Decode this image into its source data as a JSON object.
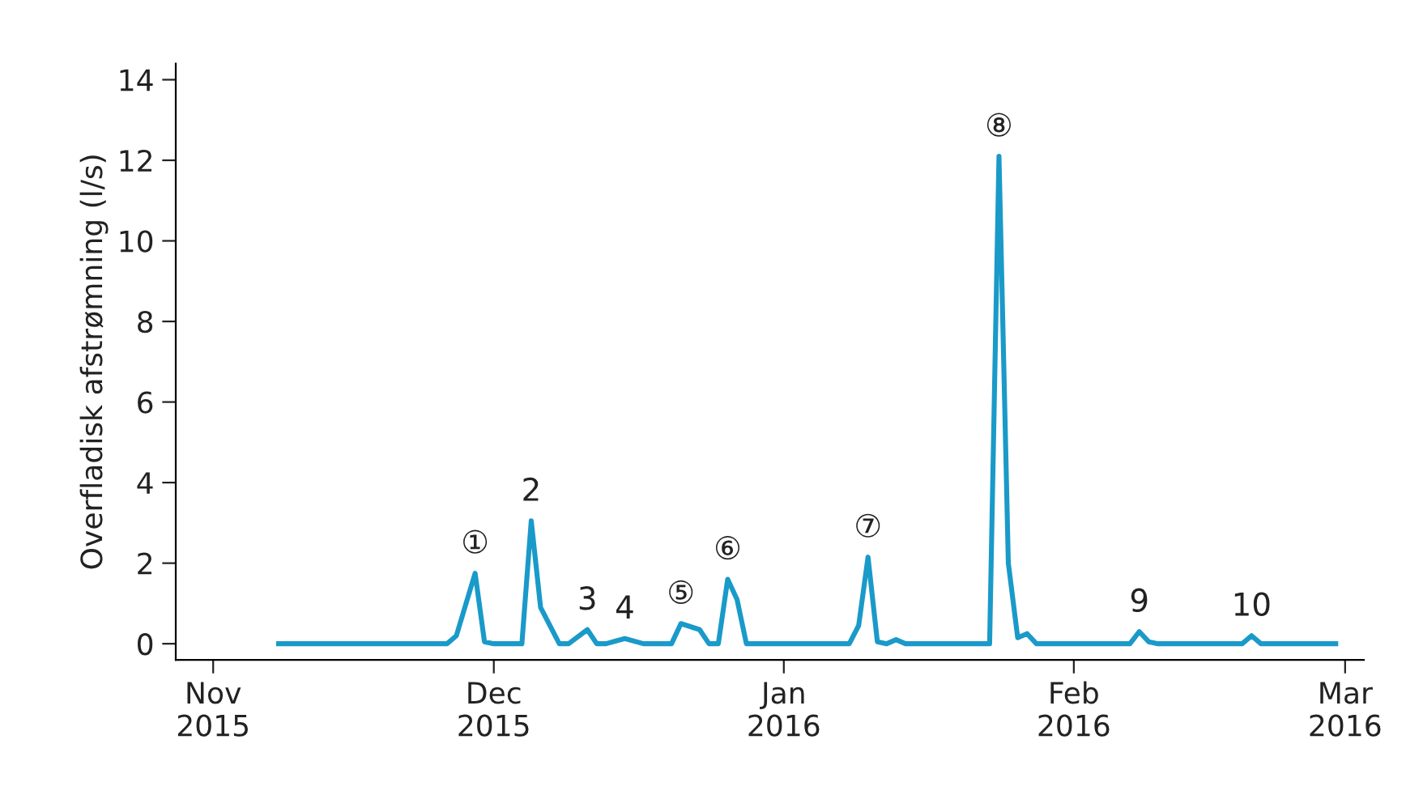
{
  "chart_data": {
    "type": "line",
    "ylabel": "Overfladisk afstrømning (l/s)",
    "x": [
      "2015-11-08",
      "2015-11-26",
      "2015-11-27",
      "2015-11-29",
      "2015-11-30",
      "2015-12-01",
      "2015-12-04",
      "2015-12-05",
      "2015-12-06",
      "2015-12-08",
      "2015-12-09",
      "2015-12-11",
      "2015-12-12",
      "2015-12-13",
      "2015-12-15",
      "2015-12-17",
      "2015-12-20",
      "2015-12-21",
      "2015-12-23",
      "2015-12-24",
      "2015-12-25",
      "2015-12-26",
      "2015-12-27",
      "2015-12-28",
      "2016-01-08",
      "2016-01-09",
      "2016-01-10",
      "2016-01-11",
      "2016-01-12",
      "2016-01-13",
      "2016-01-14",
      "2016-01-23",
      "2016-01-24",
      "2016-01-25",
      "2016-01-26",
      "2016-01-27",
      "2016-01-28",
      "2016-02-07",
      "2016-02-08",
      "2016-02-09",
      "2016-02-10",
      "2016-02-19",
      "2016-02-20",
      "2016-02-21",
      "2016-02-29"
    ],
    "series": [
      {
        "color": "#1a9ac9",
        "values": [
          0,
          0,
          0.2,
          1.75,
          0.05,
          0,
          0,
          3.05,
          0.9,
          0,
          0,
          0.35,
          0,
          0,
          0.13,
          0,
          0,
          0.5,
          0.35,
          0,
          0,
          1.6,
          1.1,
          0,
          0,
          0.45,
          2.15,
          0.05,
          0,
          0.1,
          0,
          0,
          12.1,
          2.0,
          0.15,
          0.25,
          0,
          0,
          0.3,
          0.05,
          0,
          0,
          0.2,
          0,
          0
        ]
      }
    ],
    "xlim": [
      "2015-10-28",
      "2016-03-03"
    ],
    "xticks": [
      {
        "value": "2015-11-01",
        "label": "Nov\n2015"
      },
      {
        "value": "2015-12-01",
        "label": "Dec\n2015"
      },
      {
        "value": "2016-01-01",
        "label": "Jan\n2016"
      },
      {
        "value": "2016-02-01",
        "label": "Feb\n2016"
      },
      {
        "value": "2016-03-01",
        "label": "Mar\n2016"
      }
    ],
    "ylim": [
      -0.4,
      14.4
    ],
    "yticks": [
      0,
      2,
      4,
      6,
      8,
      10,
      12,
      14
    ],
    "grid": false,
    "legend": false,
    "marker": "none",
    "line_style": "solid",
    "annotations": [
      {
        "text": "①",
        "x": "2015-11-29",
        "y": 1.75
      },
      {
        "text": "2",
        "x": "2015-12-05",
        "y": 3.05
      },
      {
        "text": "3",
        "x": "2015-12-11",
        "y": 0.35
      },
      {
        "text": "4",
        "x": "2015-12-15",
        "y": 0.13
      },
      {
        "text": "⑤",
        "x": "2015-12-21",
        "y": 0.5
      },
      {
        "text": "⑥",
        "x": "2015-12-26",
        "y": 1.6
      },
      {
        "text": "⑦",
        "x": "2016-01-10",
        "y": 2.15
      },
      {
        "text": "⑧",
        "x": "2016-01-24",
        "y": 12.1
      },
      {
        "text": "9",
        "x": "2016-02-08",
        "y": 0.3
      },
      {
        "text": "10",
        "x": "2016-02-20",
        "y": 0.2
      }
    ]
  }
}
